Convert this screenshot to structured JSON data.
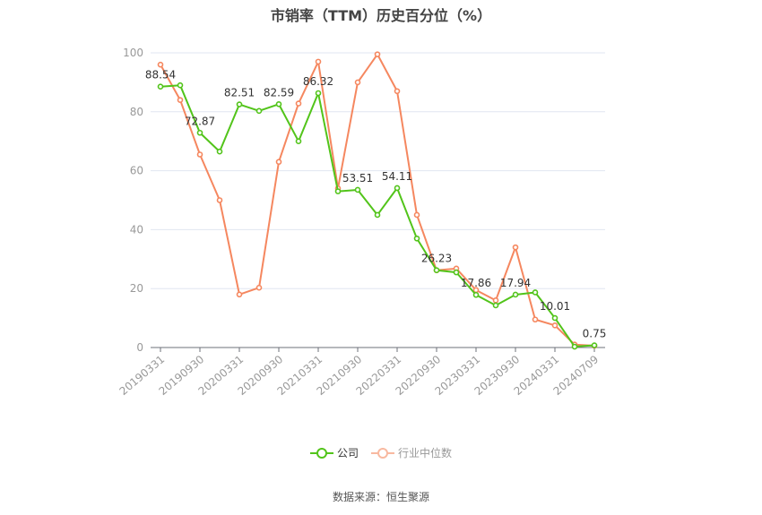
{
  "title": "市销率（TTM）历史百分位（%）",
  "source": "数据来源：恒生聚源",
  "colors": {
    "company": "#52c41a",
    "industry": "#f5875f",
    "grid": "#e0e6f1",
    "axis": "#6e7079",
    "tick_label": "#999999",
    "data_label": "#333333"
  },
  "legend": [
    {
      "name": "公司",
      "color": "#52c41a"
    },
    {
      "name": "行业中位数",
      "color": "#f5875f"
    }
  ],
  "chart_data": {
    "type": "line",
    "title": "市销率（TTM）历史百分位（%）",
    "xlabel": "",
    "ylabel": "",
    "ylim": [
      0,
      100
    ],
    "yticks": [
      0,
      20,
      40,
      60,
      80,
      100
    ],
    "grid": true,
    "legend_position": "bottom",
    "x_tick_labels": [
      "20190331",
      "20190930",
      "20200331",
      "20200930",
      "20210331",
      "20210930",
      "20220331",
      "20220930",
      "20230331",
      "20230930",
      "20240331",
      "20240709"
    ],
    "x_tick_indices": [
      0,
      2,
      4,
      6,
      8,
      10,
      12,
      14,
      16,
      18,
      20,
      22
    ],
    "point_count": 23,
    "series": [
      {
        "name": "公司",
        "values": [
          88.54,
          89.0,
          72.87,
          66.5,
          82.51,
          80.3,
          82.59,
          70.0,
          86.32,
          53.0,
          53.51,
          45.0,
          54.11,
          37.0,
          26.23,
          25.5,
          17.86,
          14.3,
          17.94,
          18.7,
          10.01,
          0.3,
          0.75
        ],
        "labels": {
          "0": "88.54",
          "2": "72.87",
          "4": "82.51",
          "6": "82.59",
          "8": "86.32",
          "10": "53.51",
          "12": "54.11",
          "14": "26.23",
          "16": "17.86",
          "18": "17.94",
          "20": "10.01",
          "22": "0.75"
        }
      },
      {
        "name": "行业中位数",
        "values": [
          96.0,
          84.0,
          65.5,
          50.0,
          18.0,
          20.3,
          63.0,
          82.8,
          97.0,
          54.0,
          90.0,
          99.5,
          87.0,
          45.0,
          26.2,
          26.8,
          19.5,
          16.0,
          34.0,
          9.5,
          7.5,
          1.0,
          0.6
        ]
      }
    ]
  }
}
